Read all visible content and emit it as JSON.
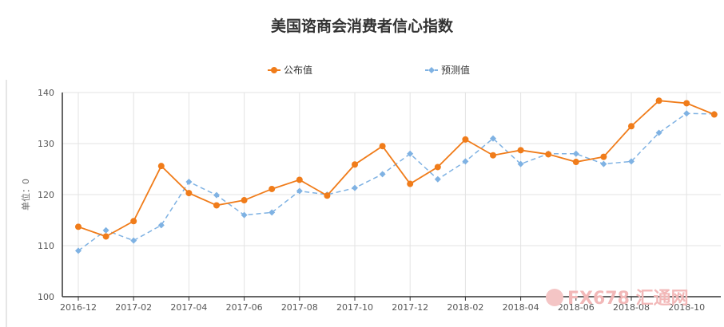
{
  "chart_data": {
    "type": "line",
    "title": "美国谘商会消费者信心指数",
    "ylabel": "单位：0",
    "ylim": [
      100,
      140
    ],
    "yticks": [
      100,
      110,
      120,
      130,
      140
    ],
    "x": [
      "2016-12",
      "2017-01",
      "2017-02",
      "2017-03",
      "2017-04",
      "2017-05",
      "2017-06",
      "2017-07",
      "2017-08",
      "2017-09",
      "2017-10",
      "2017-11",
      "2017-12",
      "2018-01",
      "2018-02",
      "2018-03",
      "2018-04",
      "2018-05",
      "2018-06",
      "2018-07",
      "2018-08",
      "2018-09",
      "2018-10",
      "2018-11"
    ],
    "xtick_labels": [
      "2016-12",
      "2017-02",
      "2017-04",
      "2017-06",
      "2017-08",
      "2017-10",
      "2017-12",
      "2018-02",
      "2018-04",
      "2018-06",
      "2018-08",
      "2018-10"
    ],
    "series": [
      {
        "name": "公布值",
        "color": "#f07c1a",
        "style": "solid",
        "marker": "circle",
        "values": [
          113.7,
          111.8,
          114.8,
          125.6,
          120.3,
          117.9,
          118.9,
          121.1,
          122.9,
          119.8,
          125.9,
          129.5,
          122.1,
          125.4,
          130.8,
          127.7,
          128.7,
          127.9,
          126.4,
          127.4,
          133.4,
          138.4,
          137.9,
          135.7
        ]
      },
      {
        "name": "预测值",
        "color": "#7fb2e3",
        "style": "dashed",
        "marker": "diamond",
        "values": [
          109,
          113,
          111,
          114,
          122.5,
          119.9,
          116,
          116.5,
          120.7,
          120,
          121.3,
          124,
          128,
          123,
          126.5,
          131,
          126,
          128,
          128,
          126,
          126.5,
          132.1,
          135.9,
          135.8
        ]
      }
    ],
    "grid": true,
    "legend": "top-center"
  },
  "watermark": {
    "text": "FX678 汇通网",
    "icon": "fx678-logo-icon"
  }
}
